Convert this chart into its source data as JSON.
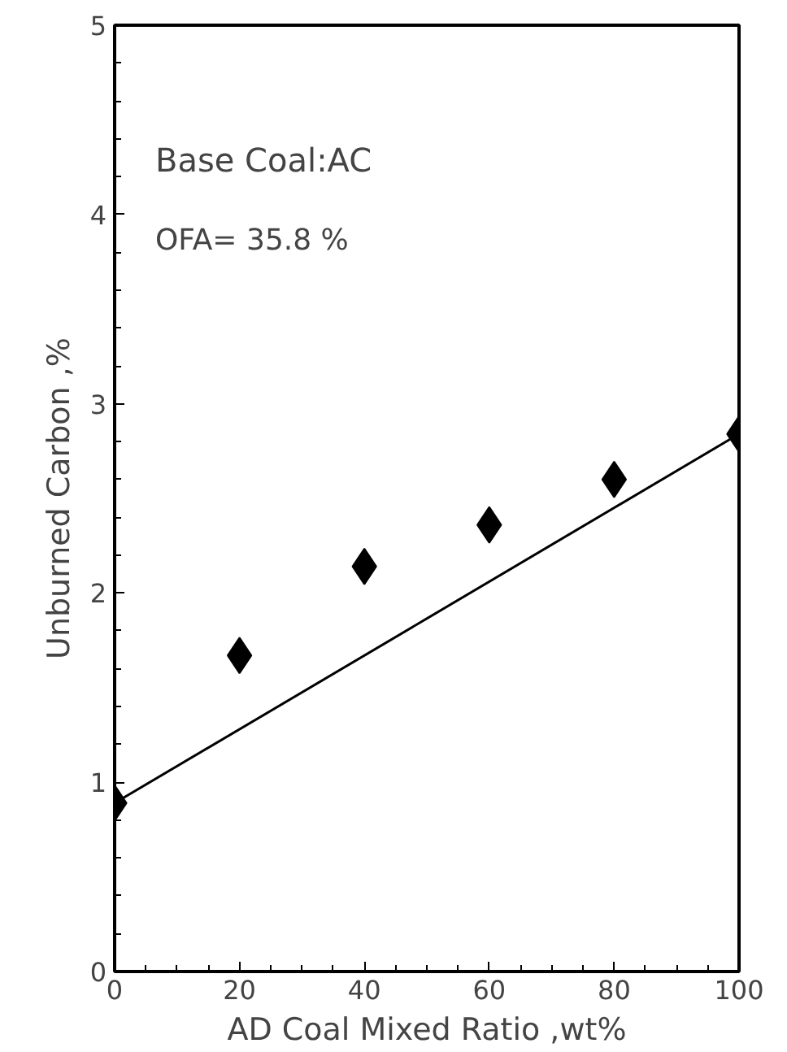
{
  "chart_data": {
    "type": "scatter",
    "xlabel": "AD Coal Mixed Ratio ,wt%",
    "ylabel": "Unburned Carbon ,%",
    "annotations": [
      "Base Coal:AC",
      "OFA= 35.8 %"
    ],
    "x": [
      0,
      20,
      40,
      60,
      80,
      100
    ],
    "series": [
      {
        "color": "#000000",
        "marker": "diamond",
        "values": [
          0.89,
          1.67,
          2.14,
          2.36,
          2.6,
          2.84
        ]
      },
      {
        "type": "line",
        "color": "#000000",
        "x": [
          0,
          100
        ],
        "values": [
          0.89,
          2.84
        ],
        "line_style": "solid"
      }
    ],
    "xlim": [
      0,
      100
    ],
    "ylim": [
      0,
      5
    ],
    "xticks": [
      0,
      20,
      40,
      60,
      80,
      100
    ],
    "yticks": [
      0,
      1,
      2,
      3,
      4,
      5
    ],
    "grid": false
  }
}
